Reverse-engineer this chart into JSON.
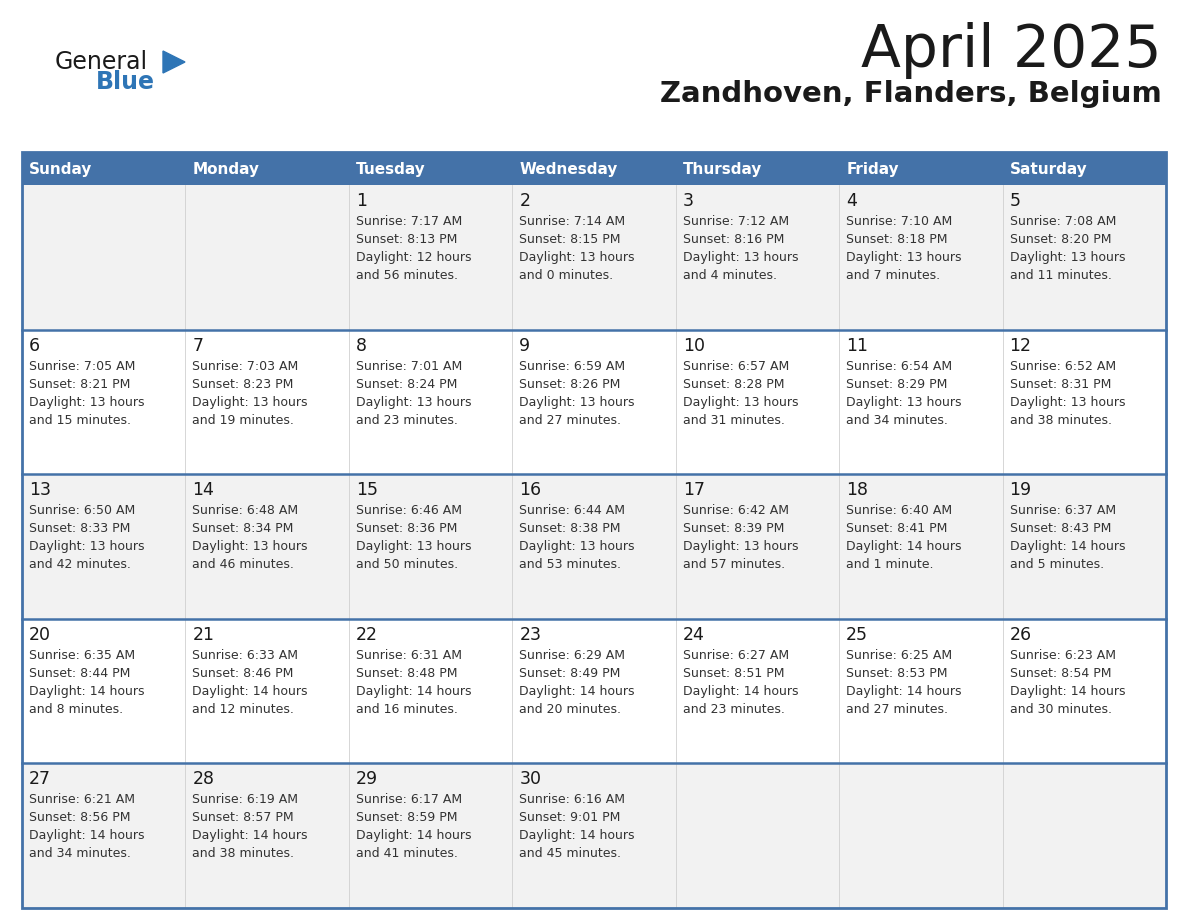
{
  "title": "April 2025",
  "subtitle": "Zandhoven, Flanders, Belgium",
  "days_of_week": [
    "Sunday",
    "Monday",
    "Tuesday",
    "Wednesday",
    "Thursday",
    "Friday",
    "Saturday"
  ],
  "header_bg_color": "#4472a8",
  "header_text_color": "#ffffff",
  "row_bg_even": "#f2f2f2",
  "row_bg_odd": "#ffffff",
  "border_color": "#4472a8",
  "separator_color": "#4472a8",
  "col_sep_color": "#d0d0d0",
  "title_color": "#1a1a1a",
  "subtitle_color": "#1a1a1a",
  "day_number_color": "#1a1a1a",
  "cell_text_color": "#333333",
  "logo_general_color": "#1a1a1a",
  "logo_blue_color": "#2e75b6",
  "weeks": [
    [
      {
        "day": "",
        "sunrise": "",
        "sunset": "",
        "daylight": ""
      },
      {
        "day": "",
        "sunrise": "",
        "sunset": "",
        "daylight": ""
      },
      {
        "day": "1",
        "sunrise": "Sunrise: 7:17 AM",
        "sunset": "Sunset: 8:13 PM",
        "daylight": "Daylight: 12 hours\nand 56 minutes."
      },
      {
        "day": "2",
        "sunrise": "Sunrise: 7:14 AM",
        "sunset": "Sunset: 8:15 PM",
        "daylight": "Daylight: 13 hours\nand 0 minutes."
      },
      {
        "day": "3",
        "sunrise": "Sunrise: 7:12 AM",
        "sunset": "Sunset: 8:16 PM",
        "daylight": "Daylight: 13 hours\nand 4 minutes."
      },
      {
        "day": "4",
        "sunrise": "Sunrise: 7:10 AM",
        "sunset": "Sunset: 8:18 PM",
        "daylight": "Daylight: 13 hours\nand 7 minutes."
      },
      {
        "day": "5",
        "sunrise": "Sunrise: 7:08 AM",
        "sunset": "Sunset: 8:20 PM",
        "daylight": "Daylight: 13 hours\nand 11 minutes."
      }
    ],
    [
      {
        "day": "6",
        "sunrise": "Sunrise: 7:05 AM",
        "sunset": "Sunset: 8:21 PM",
        "daylight": "Daylight: 13 hours\nand 15 minutes."
      },
      {
        "day": "7",
        "sunrise": "Sunrise: 7:03 AM",
        "sunset": "Sunset: 8:23 PM",
        "daylight": "Daylight: 13 hours\nand 19 minutes."
      },
      {
        "day": "8",
        "sunrise": "Sunrise: 7:01 AM",
        "sunset": "Sunset: 8:24 PM",
        "daylight": "Daylight: 13 hours\nand 23 minutes."
      },
      {
        "day": "9",
        "sunrise": "Sunrise: 6:59 AM",
        "sunset": "Sunset: 8:26 PM",
        "daylight": "Daylight: 13 hours\nand 27 minutes."
      },
      {
        "day": "10",
        "sunrise": "Sunrise: 6:57 AM",
        "sunset": "Sunset: 8:28 PM",
        "daylight": "Daylight: 13 hours\nand 31 minutes."
      },
      {
        "day": "11",
        "sunrise": "Sunrise: 6:54 AM",
        "sunset": "Sunset: 8:29 PM",
        "daylight": "Daylight: 13 hours\nand 34 minutes."
      },
      {
        "day": "12",
        "sunrise": "Sunrise: 6:52 AM",
        "sunset": "Sunset: 8:31 PM",
        "daylight": "Daylight: 13 hours\nand 38 minutes."
      }
    ],
    [
      {
        "day": "13",
        "sunrise": "Sunrise: 6:50 AM",
        "sunset": "Sunset: 8:33 PM",
        "daylight": "Daylight: 13 hours\nand 42 minutes."
      },
      {
        "day": "14",
        "sunrise": "Sunrise: 6:48 AM",
        "sunset": "Sunset: 8:34 PM",
        "daylight": "Daylight: 13 hours\nand 46 minutes."
      },
      {
        "day": "15",
        "sunrise": "Sunrise: 6:46 AM",
        "sunset": "Sunset: 8:36 PM",
        "daylight": "Daylight: 13 hours\nand 50 minutes."
      },
      {
        "day": "16",
        "sunrise": "Sunrise: 6:44 AM",
        "sunset": "Sunset: 8:38 PM",
        "daylight": "Daylight: 13 hours\nand 53 minutes."
      },
      {
        "day": "17",
        "sunrise": "Sunrise: 6:42 AM",
        "sunset": "Sunset: 8:39 PM",
        "daylight": "Daylight: 13 hours\nand 57 minutes."
      },
      {
        "day": "18",
        "sunrise": "Sunrise: 6:40 AM",
        "sunset": "Sunset: 8:41 PM",
        "daylight": "Daylight: 14 hours\nand 1 minute."
      },
      {
        "day": "19",
        "sunrise": "Sunrise: 6:37 AM",
        "sunset": "Sunset: 8:43 PM",
        "daylight": "Daylight: 14 hours\nand 5 minutes."
      }
    ],
    [
      {
        "day": "20",
        "sunrise": "Sunrise: 6:35 AM",
        "sunset": "Sunset: 8:44 PM",
        "daylight": "Daylight: 14 hours\nand 8 minutes."
      },
      {
        "day": "21",
        "sunrise": "Sunrise: 6:33 AM",
        "sunset": "Sunset: 8:46 PM",
        "daylight": "Daylight: 14 hours\nand 12 minutes."
      },
      {
        "day": "22",
        "sunrise": "Sunrise: 6:31 AM",
        "sunset": "Sunset: 8:48 PM",
        "daylight": "Daylight: 14 hours\nand 16 minutes."
      },
      {
        "day": "23",
        "sunrise": "Sunrise: 6:29 AM",
        "sunset": "Sunset: 8:49 PM",
        "daylight": "Daylight: 14 hours\nand 20 minutes."
      },
      {
        "day": "24",
        "sunrise": "Sunrise: 6:27 AM",
        "sunset": "Sunset: 8:51 PM",
        "daylight": "Daylight: 14 hours\nand 23 minutes."
      },
      {
        "day": "25",
        "sunrise": "Sunrise: 6:25 AM",
        "sunset": "Sunset: 8:53 PM",
        "daylight": "Daylight: 14 hours\nand 27 minutes."
      },
      {
        "day": "26",
        "sunrise": "Sunrise: 6:23 AM",
        "sunset": "Sunset: 8:54 PM",
        "daylight": "Daylight: 14 hours\nand 30 minutes."
      }
    ],
    [
      {
        "day": "27",
        "sunrise": "Sunrise: 6:21 AM",
        "sunset": "Sunset: 8:56 PM",
        "daylight": "Daylight: 14 hours\nand 34 minutes."
      },
      {
        "day": "28",
        "sunrise": "Sunrise: 6:19 AM",
        "sunset": "Sunset: 8:57 PM",
        "daylight": "Daylight: 14 hours\nand 38 minutes."
      },
      {
        "day": "29",
        "sunrise": "Sunrise: 6:17 AM",
        "sunset": "Sunset: 8:59 PM",
        "daylight": "Daylight: 14 hours\nand 41 minutes."
      },
      {
        "day": "30",
        "sunrise": "Sunrise: 6:16 AM",
        "sunset": "Sunset: 9:01 PM",
        "daylight": "Daylight: 14 hours\nand 45 minutes."
      },
      {
        "day": "",
        "sunrise": "",
        "sunset": "",
        "daylight": ""
      },
      {
        "day": "",
        "sunrise": "",
        "sunset": "",
        "daylight": ""
      },
      {
        "day": "",
        "sunrise": "",
        "sunset": "",
        "daylight": ""
      }
    ]
  ]
}
